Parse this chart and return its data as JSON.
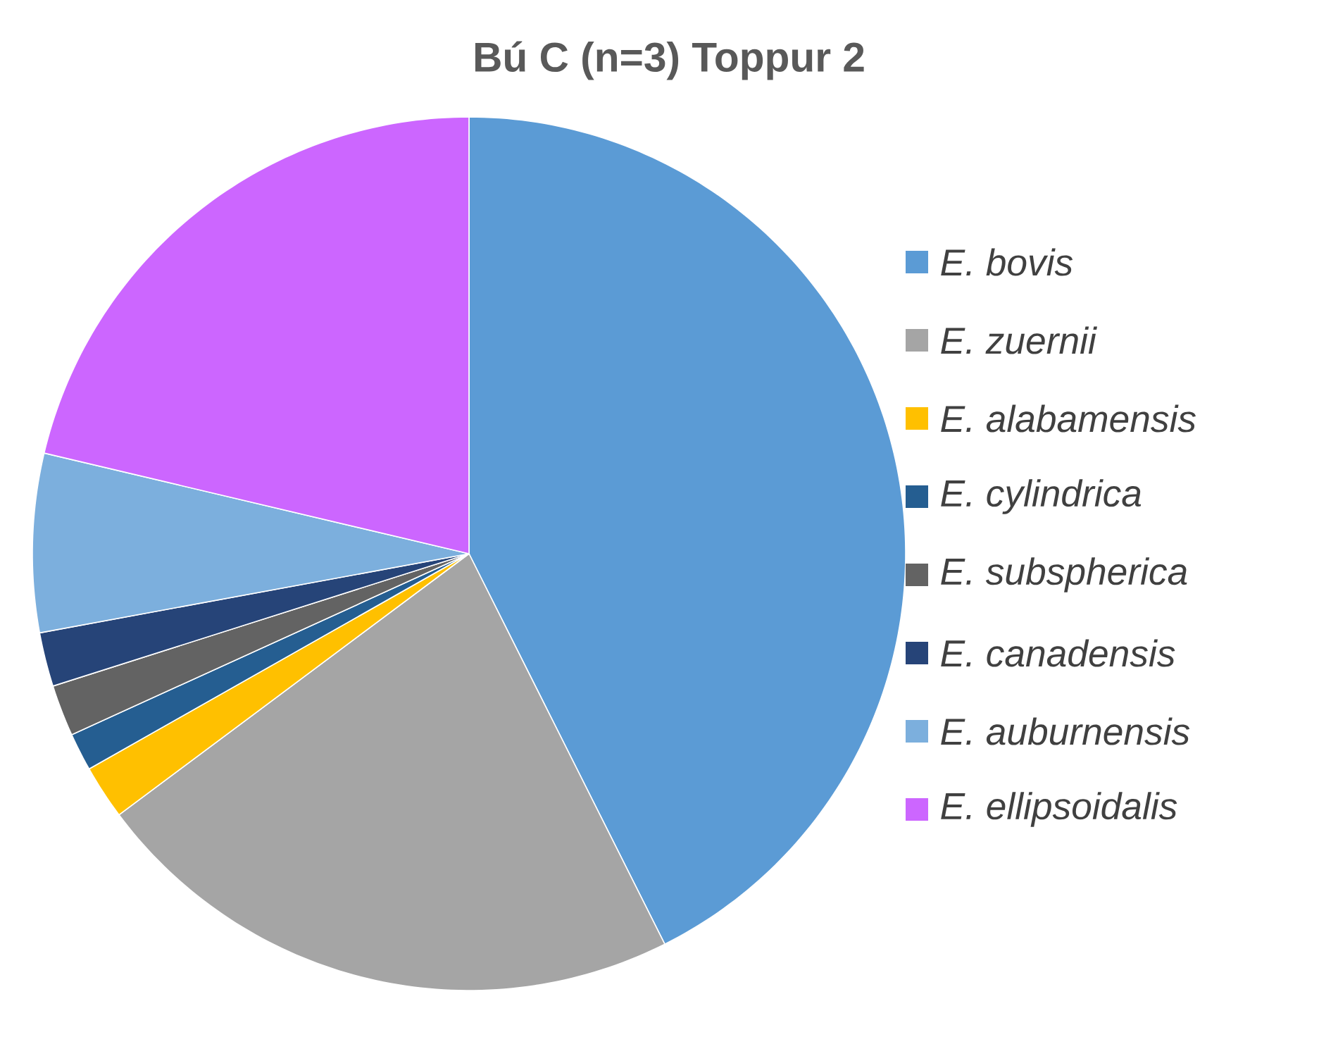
{
  "chart_data": {
    "type": "pie",
    "title": "Bú C (n=3) Toppur 2",
    "categories": [
      "E. bovis",
      "E. zuernii",
      "E. alabamensis",
      "E. cylindrica",
      "E. subspherica",
      "E. canadensis",
      "E. auburnensis",
      "E. ellipsoidalis"
    ],
    "values": [
      42.6,
      22.2,
      2.0,
      1.4,
      1.9,
      2.0,
      6.6,
      21.3
    ],
    "colors": [
      "#5b9bd5",
      "#a5a5a5",
      "#ffc000",
      "#255e91",
      "#636363",
      "#264478",
      "#7cafdd",
      "#cc66ff"
    ],
    "legend": "right"
  }
}
